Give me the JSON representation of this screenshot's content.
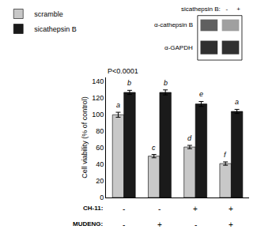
{
  "chart_data": {
    "type": "bar",
    "categories": [
      null,
      null,
      null,
      null
    ],
    "series": [
      {
        "name": "scramble",
        "color": "#c8c8c8",
        "values": [
          100,
          50,
          61,
          41
        ],
        "errors": [
          3,
          2,
          2,
          2
        ],
        "letters": [
          "a",
          "c",
          "d",
          "f"
        ]
      },
      {
        "name": "sicathepsin B",
        "color": "#1a1a1a",
        "values": [
          127,
          127,
          113,
          104
        ],
        "errors": [
          2.5,
          3,
          3,
          2.5
        ],
        "letters": [
          "b",
          "b",
          "e",
          "a"
        ]
      }
    ],
    "ylabel": "Cell viability (% of control)",
    "ylim": [
      0,
      145
    ],
    "yticks": [
      0,
      20,
      40,
      60,
      80,
      100,
      120,
      140
    ],
    "grid": false,
    "legend": "upper left",
    "annotations": [
      "P<0.0001"
    ],
    "row_labels": [
      {
        "label": "CH-11:",
        "values": [
          "-",
          "-",
          "+",
          "+"
        ]
      },
      {
        "label": "MUDENG:",
        "values": [
          "-",
          "+",
          "-",
          "+"
        ]
      }
    ],
    "western_blot": {
      "header": "sicathepsin B:   -     +",
      "rows": [
        {
          "label": "α-cathepsin B",
          "colors": [
            "#606060",
            "#a0a0a0"
          ]
        },
        {
          "label": "α-GAPDH",
          "colors": [
            "#303030",
            "#303030"
          ]
        }
      ]
    }
  }
}
